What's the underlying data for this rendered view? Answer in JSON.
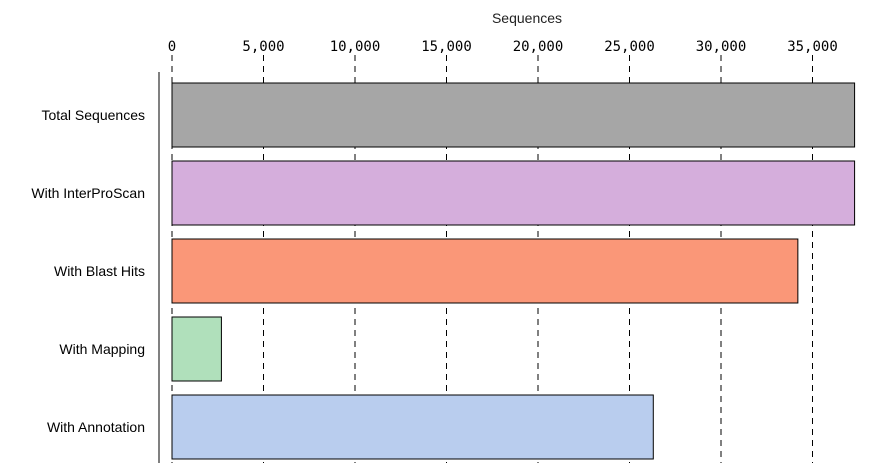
{
  "chart_data": {
    "type": "bar",
    "orientation": "horizontal",
    "xlabel": "Sequences",
    "xaxis_position": "top",
    "xlim": [
      0,
      37500
    ],
    "xticks": [
      0,
      5000,
      10000,
      15000,
      20000,
      25000,
      30000,
      35000
    ],
    "xtick_labels": [
      "0",
      "5,000",
      "10,000",
      "15,000",
      "20,000",
      "25,000",
      "30,000",
      "35,000"
    ],
    "grid": "vertical dashed",
    "categories": [
      "Total Sequences",
      "With InterProScan",
      "With Blast Hits",
      "With Mapping",
      "With Annotation"
    ],
    "values": [
      37300,
      37300,
      34200,
      2700,
      26300
    ],
    "colors": [
      "#a6a6a6",
      "#d5aedc",
      "#fa9778",
      "#b0e0bb",
      "#b9cdee"
    ]
  }
}
